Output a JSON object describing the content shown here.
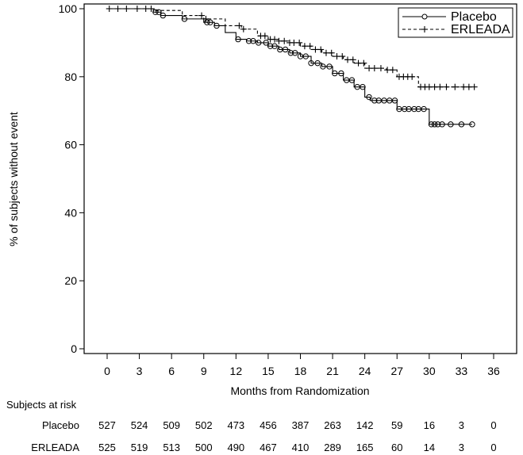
{
  "chart_data": {
    "type": "line",
    "subtype": "kaplan-meier",
    "title": "",
    "xlabel": "Months from Randomization",
    "ylabel": "% of subjects without event",
    "xlim": [
      0,
      36
    ],
    "ylim": [
      0,
      100
    ],
    "xticks": [
      0,
      3,
      6,
      9,
      12,
      15,
      18,
      21,
      24,
      27,
      30,
      33,
      36
    ],
    "yticks": [
      0,
      20,
      40,
      60,
      80,
      100
    ],
    "grid": false,
    "legend": {
      "placement": "top-right",
      "entries": [
        "Placebo",
        "ERLEADA"
      ]
    },
    "series": [
      {
        "name": "Placebo",
        "line_style": "solid",
        "marker": "circle",
        "color": "#000000",
        "steps": [
          [
            0,
            100
          ],
          [
            4.3,
            99
          ],
          [
            5.0,
            98
          ],
          [
            7.0,
            97
          ],
          [
            9.0,
            96
          ],
          [
            10.0,
            95
          ],
          [
            11.0,
            93
          ],
          [
            12.0,
            91
          ],
          [
            13.0,
            90.5
          ],
          [
            14.0,
            90
          ],
          [
            15.0,
            89
          ],
          [
            16.0,
            88
          ],
          [
            17.0,
            87
          ],
          [
            18.0,
            86
          ],
          [
            19.0,
            84
          ],
          [
            20.0,
            83
          ],
          [
            21.0,
            81
          ],
          [
            22.0,
            79
          ],
          [
            23.0,
            77
          ],
          [
            24.0,
            74
          ],
          [
            24.5,
            73
          ],
          [
            27.0,
            70.5
          ],
          [
            30.0,
            66
          ],
          [
            34.0,
            66
          ]
        ],
        "censor_x": [
          4.5,
          4.8,
          5.2,
          7.2,
          9.3,
          9.6,
          10.2,
          12.2,
          13.2,
          13.6,
          14.1,
          14.8,
          15.2,
          15.6,
          16.1,
          16.6,
          17.1,
          17.5,
          18.0,
          18.5,
          19.0,
          19.6,
          20.1,
          20.7,
          21.2,
          21.8,
          22.3,
          22.8,
          23.3,
          23.8,
          24.4,
          24.9,
          25.3,
          25.8,
          26.3,
          26.8,
          27.2,
          27.7,
          28.1,
          28.6,
          29.0,
          29.5,
          30.2,
          30.5,
          30.8,
          31.2,
          32.0,
          33.0,
          34.0
        ]
      },
      {
        "name": "ERLEADA",
        "line_style": "dashed",
        "marker": "plus",
        "color": "#000000",
        "steps": [
          [
            0,
            100
          ],
          [
            4.5,
            99.5
          ],
          [
            7.0,
            98
          ],
          [
            9.0,
            97
          ],
          [
            11.0,
            95
          ],
          [
            12.5,
            94
          ],
          [
            14.0,
            92
          ],
          [
            15.0,
            91
          ],
          [
            16.0,
            90.5
          ],
          [
            17.0,
            90
          ],
          [
            18.0,
            89
          ],
          [
            19.0,
            88
          ],
          [
            20.0,
            87
          ],
          [
            21.0,
            86
          ],
          [
            22.0,
            85
          ],
          [
            23.0,
            84
          ],
          [
            24.0,
            82.5
          ],
          [
            26.0,
            82
          ],
          [
            27.0,
            80
          ],
          [
            29.0,
            77
          ],
          [
            34.0,
            77
          ]
        ],
        "censor_x": [
          0.2,
          1.0,
          1.8,
          2.8,
          3.6,
          4.1,
          8.8,
          9.2,
          12.3,
          12.7,
          14.3,
          14.7,
          15.2,
          15.6,
          16.0,
          16.5,
          17.0,
          17.4,
          17.9,
          18.4,
          18.9,
          19.4,
          19.9,
          20.4,
          20.9,
          21.4,
          21.9,
          22.4,
          22.9,
          23.4,
          23.9,
          24.4,
          24.9,
          25.5,
          26.1,
          26.6,
          27.2,
          27.6,
          28.0,
          28.4,
          29.2,
          29.6,
          30.0,
          30.5,
          31.0,
          31.6,
          32.4,
          33.2,
          33.7,
          34.2
        ]
      }
    ],
    "risk_table": {
      "title": "Subjects at risk",
      "timepoints": [
        0,
        3,
        6,
        9,
        12,
        15,
        18,
        21,
        24,
        27,
        30,
        33,
        36
      ],
      "rows": [
        {
          "label": "Placebo",
          "values": [
            527,
            524,
            509,
            502,
            473,
            456,
            387,
            263,
            142,
            59,
            16,
            3,
            0
          ]
        },
        {
          "label": "ERLEADA",
          "values": [
            525,
            519,
            513,
            500,
            490,
            467,
            410,
            289,
            165,
            60,
            14,
            3,
            0
          ]
        }
      ]
    }
  }
}
